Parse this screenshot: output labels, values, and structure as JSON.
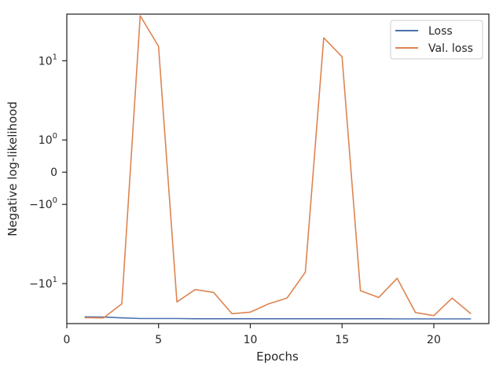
{
  "chart_data": {
    "type": "line",
    "title": "",
    "xlabel": "Epochs",
    "ylabel": "Negative log-likelihood",
    "xlim": [
      0,
      23
    ],
    "yscale": "symlog",
    "linthresh": 1,
    "ylim": [
      -25,
      29
    ],
    "grid": false,
    "legend_position": "top-right",
    "x_ticks": [
      0,
      5,
      10,
      15,
      20
    ],
    "x_tick_labels": [
      "0",
      "5",
      "10",
      "15",
      "20"
    ],
    "y_ticks": [
      -10,
      -1,
      0,
      1,
      10
    ],
    "y_tick_labels": [
      {
        "base": "−10",
        "sup": "1"
      },
      {
        "base": "−10",
        "sup": "0"
      },
      {
        "base": "0",
        "sup": ""
      },
      {
        "base": "10",
        "sup": "0"
      },
      {
        "base": "10",
        "sup": "1"
      }
    ],
    "x": [
      1,
      2,
      3,
      4,
      5,
      6,
      7,
      8,
      9,
      10,
      11,
      12,
      13,
      14,
      15,
      16,
      17,
      18,
      19,
      20,
      21,
      22
    ],
    "series": [
      {
        "name": "Loss",
        "color": "#4c72b0",
        "values": [
          -21.5,
          -21.6,
          -22.0,
          -22.3,
          -22.3,
          -22.3,
          -22.4,
          -22.4,
          -22.4,
          -22.4,
          -22.4,
          -22.4,
          -22.4,
          -22.4,
          -22.4,
          -22.4,
          -22.4,
          -22.5,
          -22.5,
          -22.5,
          -22.5,
          -22.5
        ]
      },
      {
        "name": "Val. loss",
        "color": "#dd8452",
        "values": [
          -21.9,
          -22.0,
          -16.0,
          28.0,
          14.0,
          -15.3,
          -11.5,
          -12.3,
          -20.0,
          -19.3,
          -16.0,
          -14.0,
          -7.6,
          17.0,
          11.0,
          -11.8,
          -13.8,
          -8.8,
          -19.5,
          -20.9,
          -14.0,
          -19.9
        ]
      }
    ]
  }
}
